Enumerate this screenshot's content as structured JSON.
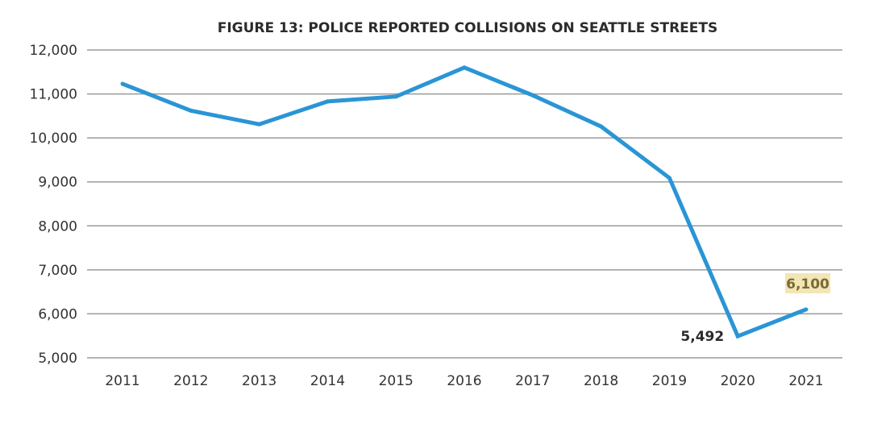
{
  "chart_data": {
    "type": "line",
    "title": "FIGURE 13: POLICE REPORTED COLLISIONS ON SEATTLE STREETS",
    "xlabel": "",
    "ylabel": "",
    "categories": [
      "2011",
      "2012",
      "2013",
      "2014",
      "2015",
      "2016",
      "2017",
      "2018",
      "2019",
      "2020",
      "2021"
    ],
    "values": [
      11230,
      10620,
      10310,
      10830,
      10940,
      11600,
      10970,
      10260,
      9090,
      5492,
      6100
    ],
    "ylim": [
      5000,
      12000
    ],
    "yticks": [
      5000,
      6000,
      7000,
      8000,
      9000,
      10000,
      11000,
      12000
    ],
    "ytick_labels": [
      "5,000",
      "6,000",
      "7,000",
      "8,000",
      "9,000",
      "10,000",
      "11,000",
      "12,000"
    ],
    "grid": "horizontal",
    "line_color": "#2a95d5",
    "annotations": [
      {
        "category": "2020",
        "text": "5,492"
      },
      {
        "category": "2021",
        "text": "6,100",
        "highlight_color": "#f3e6b5"
      }
    ]
  }
}
